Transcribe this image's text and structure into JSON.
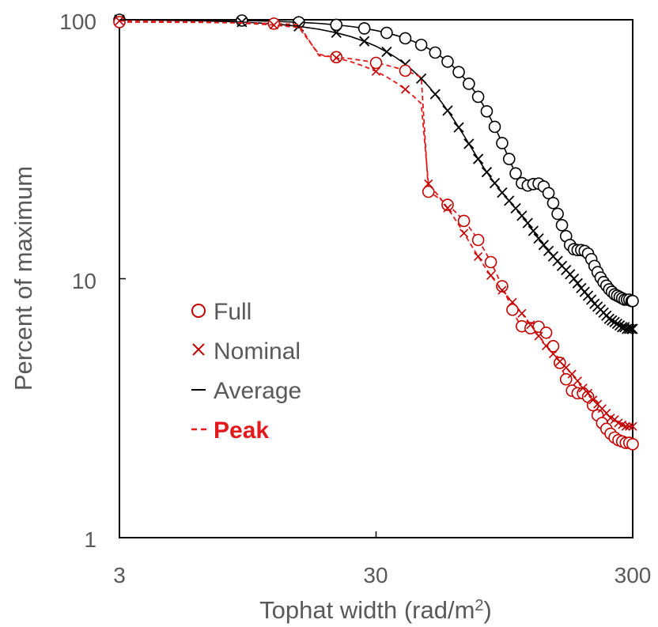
{
  "chart_data": {
    "type": "line",
    "title": "",
    "xlabel": "Tophat width (rad/m",
    "xlabel_sup": "2",
    "xlabel_close": ")",
    "ylabel": "Percent of maximum",
    "x_scale": "log",
    "y_scale": "log",
    "xlim": [
      3,
      300
    ],
    "ylim": [
      1,
      100
    ],
    "x_ticks": [
      3,
      30,
      300
    ],
    "x_tick_labels": [
      "3",
      "30",
      "300"
    ],
    "y_ticks": [
      1,
      10,
      100
    ],
    "y_tick_labels": [
      "1",
      "10",
      "100"
    ],
    "legend_position": "lower-left",
    "series": [
      {
        "name": "Full",
        "style": "circle-marker, solid line",
        "color": "#000000",
        "x": [
          3,
          6,
          9,
          12,
          15,
          18,
          21,
          24,
          27,
          30,
          33,
          36,
          39,
          42,
          45,
          48,
          51,
          54,
          57,
          60,
          63,
          66,
          69,
          72,
          75,
          78,
          81,
          84,
          87,
          90,
          93,
          96,
          99,
          102,
          105,
          108,
          111,
          114,
          117,
          120,
          123,
          126,
          129,
          132,
          135,
          138,
          141,
          144,
          147,
          150,
          153,
          156,
          159,
          162,
          165,
          168,
          171,
          174,
          177,
          180,
          183,
          186,
          189,
          192,
          195,
          198,
          201,
          204,
          207,
          210,
          213,
          216,
          219,
          222,
          225,
          228,
          231,
          234,
          237,
          240,
          243,
          246,
          249,
          252,
          255,
          258,
          261,
          264,
          267,
          270,
          273,
          276,
          279,
          282,
          285,
          288,
          291,
          294,
          297,
          300
        ],
        "y": [
          100,
          99.7,
          99.3,
          98.6,
          97.8,
          96.8,
          95.6,
          94.2,
          92.6,
          90.9,
          89.0,
          87.0,
          84.8,
          82.5,
          80.0,
          77.4,
          74.7,
          71.8,
          68.9,
          65.9,
          62.8,
          59.7,
          56.6,
          53.5,
          50.4,
          47.3,
          44.3,
          41.4,
          38.6,
          35.9,
          33.4,
          31.1,
          29.0,
          27.1,
          25.5,
          24.2,
          23.4,
          23.0,
          22.9,
          23.0,
          23.2,
          23.3,
          23.3,
          23.1,
          22.7,
          22.1,
          21.4,
          20.5,
          19.6,
          18.7,
          17.8,
          16.9,
          16.1,
          15.3,
          14.6,
          14.0,
          13.5,
          13.2,
          13.0,
          12.9,
          12.9,
          12.9,
          12.9,
          12.9,
          12.8,
          12.7,
          12.5,
          12.2,
          11.9,
          11.6,
          11.2,
          10.9,
          10.6,
          10.3,
          10.1,
          9.9,
          9.7,
          9.5,
          9.4,
          9.2,
          9.1,
          9.0,
          8.9,
          8.8,
          8.7,
          8.6,
          8.6,
          8.5,
          8.5,
          8.4,
          8.4,
          8.4,
          8.3,
          8.3,
          8.3,
          8.3,
          8.3,
          8.2,
          8.2,
          8.2
        ]
      },
      {
        "name": "Nominal",
        "style": "x-marker, solid line",
        "color": "#000000",
        "x": [
          3,
          6,
          9,
          12,
          15,
          18,
          21,
          24,
          27,
          30,
          33,
          36,
          39,
          42,
          45,
          48,
          51,
          54,
          57,
          60,
          63,
          66,
          69,
          72,
          75,
          78,
          81,
          84,
          87,
          90,
          93,
          96,
          99,
          102,
          105,
          108,
          111,
          114,
          117,
          120,
          123,
          126,
          129,
          132,
          135,
          138,
          141,
          144,
          147,
          150,
          153,
          156,
          159,
          162,
          165,
          168,
          171,
          174,
          177,
          180,
          183,
          186,
          189,
          192,
          195,
          198,
          201,
          204,
          207,
          210,
          213,
          216,
          219,
          222,
          225,
          228,
          231,
          234,
          237,
          240,
          243,
          246,
          249,
          252,
          255,
          258,
          261,
          264,
          267,
          270,
          273,
          276,
          279,
          282,
          285,
          288,
          291,
          294,
          297,
          300
        ],
        "y": [
          100,
          99.2,
          98.0,
          96.4,
          94.3,
          91.9,
          89.1,
          86.0,
          82.6,
          79.0,
          75.2,
          71.3,
          67.3,
          63.3,
          59.3,
          55.4,
          51.6,
          48.0,
          44.6,
          41.4,
          38.4,
          35.7,
          33.2,
          31.0,
          29.0,
          27.3,
          25.8,
          24.5,
          23.4,
          22.4,
          21.5,
          20.7,
          20.0,
          19.3,
          18.7,
          18.1,
          17.5,
          16.9,
          16.4,
          15.8,
          15.3,
          14.8,
          14.3,
          13.9,
          13.5,
          13.1,
          12.8,
          12.5,
          12.2,
          11.9,
          11.7,
          11.4,
          11.2,
          11.0,
          10.8,
          10.6,
          10.4,
          10.2,
          10.0,
          9.8,
          9.6,
          9.4,
          9.2,
          9.0,
          8.9,
          8.7,
          8.6,
          8.4,
          8.3,
          8.1,
          8.0,
          7.9,
          7.8,
          7.7,
          7.6,
          7.5,
          7.4,
          7.3,
          7.2,
          7.1,
          7.0,
          6.9,
          6.9,
          6.8,
          6.8,
          6.7,
          6.7,
          6.6,
          6.6,
          6.6,
          6.5,
          6.5,
          6.5,
          6.4,
          6.4,
          6.4,
          6.4,
          6.4,
          6.4,
          6.4
        ]
      },
      {
        "name": "Average",
        "style": "solid line",
        "color": "#000000"
      },
      {
        "name": "Peak",
        "style": "dashed line",
        "color": "#e31a1c"
      }
    ]
  },
  "legend": {
    "full": "Full",
    "nominal": "Nominal",
    "average": "Average",
    "peak": "Peak"
  },
  "colors": {
    "black": "#000000",
    "red": "#e31a1c",
    "red_marker": "#c00000",
    "text": "#595959"
  }
}
